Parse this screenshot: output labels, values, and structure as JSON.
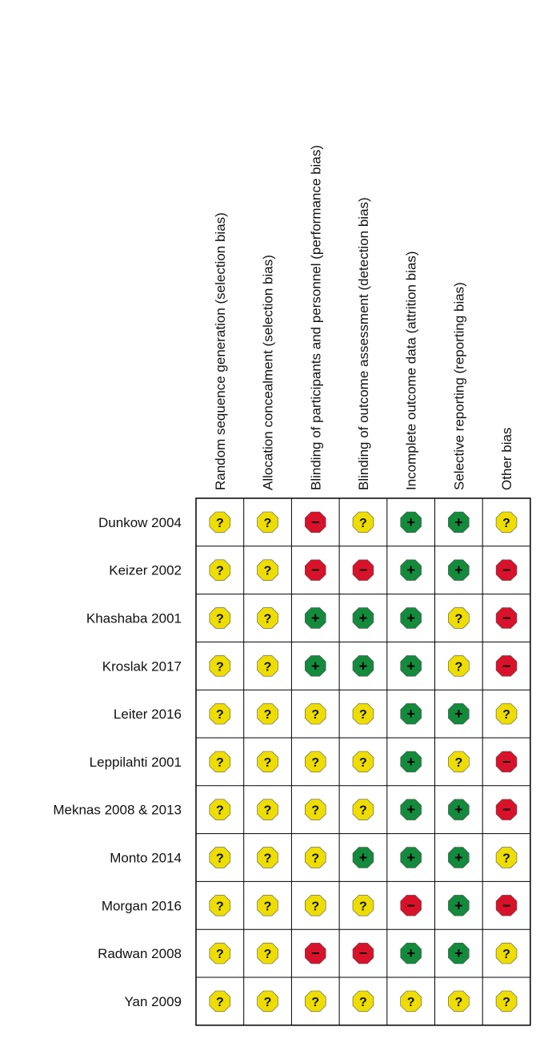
{
  "columns": [
    "Random sequence generation (selection bias)",
    "Allocation concealment (selection bias)",
    "Blinding of participants and personnel (performance bias)",
    "Blinding of outcome assessment (detection bias)",
    "Incomplete outcome data (attrition bias)",
    "Selective reporting (reporting bias)",
    "Other bias"
  ],
  "rows": [
    {
      "study": "Dunkow 2004",
      "ratings": [
        "?",
        "?",
        "−",
        "?",
        "+",
        "+",
        "?"
      ]
    },
    {
      "study": "Keizer 2002",
      "ratings": [
        "?",
        "?",
        "−",
        "−",
        "+",
        "+",
        "−"
      ]
    },
    {
      "study": "Khashaba 2001",
      "ratings": [
        "?",
        "?",
        "+",
        "+",
        "+",
        "?",
        "−"
      ]
    },
    {
      "study": "Kroslak 2017",
      "ratings": [
        "?",
        "?",
        "+",
        "+",
        "+",
        "?",
        "−"
      ]
    },
    {
      "study": "Leiter 2016",
      "ratings": [
        "?",
        "?",
        "?",
        "?",
        "+",
        "+",
        "?"
      ]
    },
    {
      "study": "Leppilahti 2001",
      "ratings": [
        "?",
        "?",
        "?",
        "?",
        "+",
        "?",
        "−"
      ]
    },
    {
      "study": "Meknas 2008 & 2013",
      "ratings": [
        "?",
        "?",
        "?",
        "?",
        "+",
        "+",
        "−"
      ]
    },
    {
      "study": "Monto 2014",
      "ratings": [
        "?",
        "?",
        "?",
        "+",
        "+",
        "+",
        "?"
      ]
    },
    {
      "study": "Morgan 2016",
      "ratings": [
        "?",
        "?",
        "?",
        "?",
        "−",
        "+",
        "−"
      ]
    },
    {
      "study": "Radwan 2008",
      "ratings": [
        "?",
        "?",
        "−",
        "−",
        "+",
        "+",
        "?"
      ]
    },
    {
      "study": "Yan 2009",
      "ratings": [
        "?",
        "?",
        "?",
        "?",
        "?",
        "?",
        "?"
      ]
    }
  ],
  "colors": {
    "+": "#138a3c",
    "?": "#eedd00",
    "−": "#d8122a"
  }
}
